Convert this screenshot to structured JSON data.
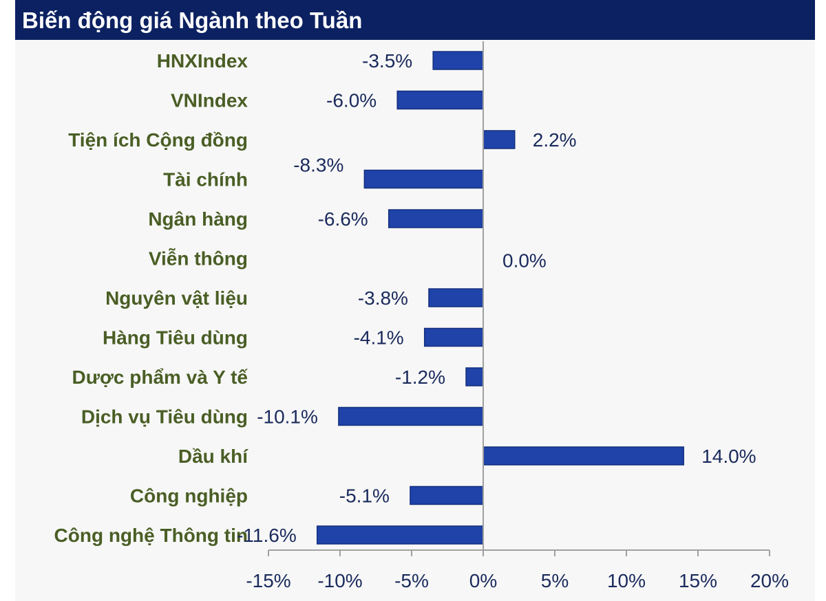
{
  "header": {
    "title": "Biến động giá Ngành theo Tuần"
  },
  "colors": {
    "bar": "#1f43a8",
    "bar_edge": "#142f7e",
    "axis": "#a0a0a0",
    "header_bg": "#0c2161"
  },
  "chart_data": {
    "type": "bar",
    "orientation": "horizontal",
    "title": "Biến động giá Ngành theo Tuần",
    "categories": [
      "HNXIndex",
      "VNIndex",
      "Tiện ích Cộng đồng",
      "Tài chính",
      "Ngân hàng",
      "Viễn thông",
      "Nguyên vật liệu",
      "Hàng Tiêu dùng",
      "Dược phẩm và Y tế",
      "Dịch vụ Tiêu dùng",
      "Dầu khí",
      "Công nghiệp",
      "Công nghệ Thông tin"
    ],
    "values": [
      -3.5,
      -6.0,
      2.2,
      -8.3,
      -6.6,
      0.0,
      -3.8,
      -4.1,
      -1.2,
      -10.1,
      14.0,
      -5.1,
      -11.6
    ],
    "value_labels": [
      "-3.5%",
      "-6.0%",
      "2.2%",
      "-8.3%",
      "-6.6%",
      "0.0%",
      "-3.8%",
      "-4.1%",
      "-1.2%",
      "-10.1%",
      "14.0%",
      "-5.1%",
      "-11.6%"
    ],
    "xlim": [
      -15,
      20
    ],
    "xticks": [
      -15,
      -10,
      -5,
      0,
      5,
      10,
      15,
      20
    ],
    "xtick_labels": [
      "-15%",
      "-10%",
      "-5%",
      "0%",
      "5%",
      "10%",
      "15%",
      "20%"
    ],
    "grid": false,
    "legend": "none"
  }
}
